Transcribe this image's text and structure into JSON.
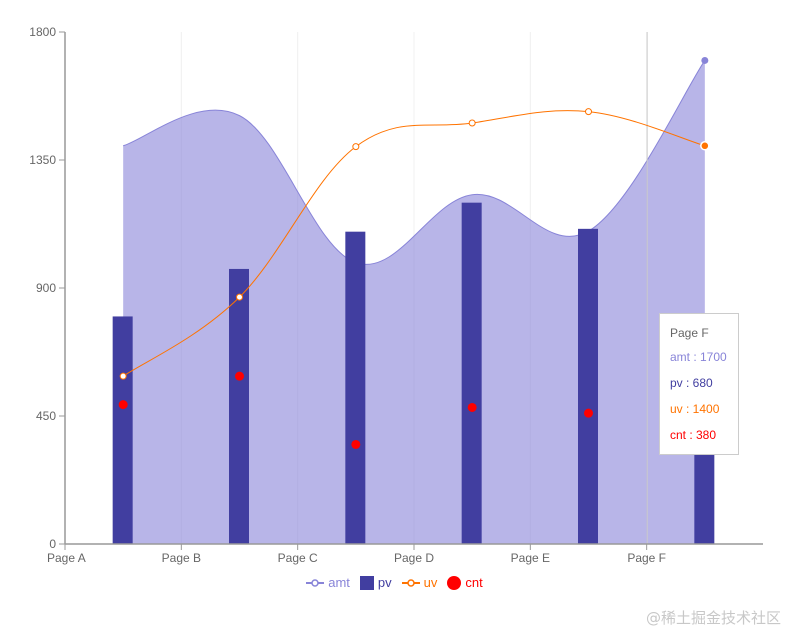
{
  "chart_data": {
    "type": "composed",
    "title": "",
    "xlabel": "",
    "ylabel": "",
    "categories": [
      "Page A",
      "Page B",
      "Page C",
      "Page D",
      "Page E",
      "Page F"
    ],
    "ylim": [
      0,
      1800
    ],
    "yticks": [
      0,
      450,
      900,
      1350,
      1800
    ],
    "grid": "vertical dashed",
    "legend_position": "bottom",
    "series": [
      {
        "name": "amt",
        "type": "area",
        "color": "#8884d8",
        "values": [
          1400,
          1506,
          989,
          1228,
          1100,
          1700
        ]
      },
      {
        "name": "pv",
        "type": "bar",
        "color": "#413ea0",
        "values": [
          800,
          967,
          1098,
          1200,
          1108,
          680
        ]
      },
      {
        "name": "uv",
        "type": "line",
        "color": "#ff7300",
        "values": [
          590,
          868,
          1397,
          1480,
          1520,
          1400
        ]
      },
      {
        "name": "cnt",
        "type": "scatter",
        "color": "#ff0000",
        "values": [
          490,
          590,
          350,
          480,
          460,
          380
        ]
      }
    ]
  },
  "axis": {
    "y_labels": [
      "0",
      "450",
      "900",
      "1350",
      "1800"
    ],
    "x_labels": [
      "Page A",
      "Page B",
      "Page C",
      "Page D",
      "Page E",
      "Page F"
    ]
  },
  "legend": [
    {
      "label": "amt",
      "color": "#8884d8"
    },
    {
      "label": "pv",
      "color": "#413ea0"
    },
    {
      "label": "uv",
      "color": "#ff7300"
    },
    {
      "label": "cnt",
      "color": "#ff0000"
    }
  ],
  "tooltip": {
    "label": "Page F",
    "rows": [
      {
        "text": "amt : 1700",
        "color": "#8884d8"
      },
      {
        "text": "pv : 680",
        "color": "#413ea0"
      },
      {
        "text": "uv : 1400",
        "color": "#ff7300"
      },
      {
        "text": "cnt : 380",
        "color": "#ff0000"
      }
    ]
  },
  "watermark": "@稀土掘金技术社区"
}
